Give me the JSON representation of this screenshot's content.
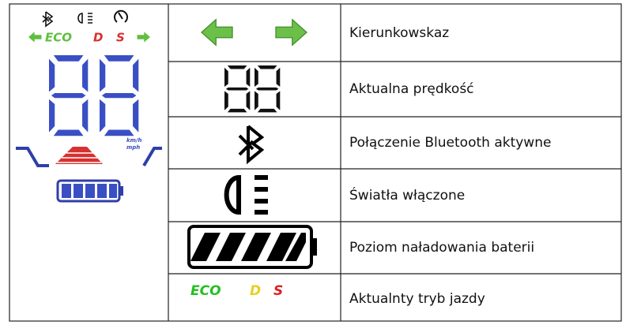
{
  "display": {
    "modes": [
      "ECO",
      "D",
      "S"
    ],
    "unit_top": "km/h",
    "unit_bottom": "mph"
  },
  "table": {
    "rows": [
      {
        "label": "Kierunkowskaz"
      },
      {
        "label": "Aktualna prędkość"
      },
      {
        "label": "Połączenie Bluetooth aktywne"
      },
      {
        "label": "Światła włączone"
      },
      {
        "label": "Poziom naładowania baterii"
      },
      {
        "label": "Aktualnty tryb jazdy"
      }
    ]
  }
}
